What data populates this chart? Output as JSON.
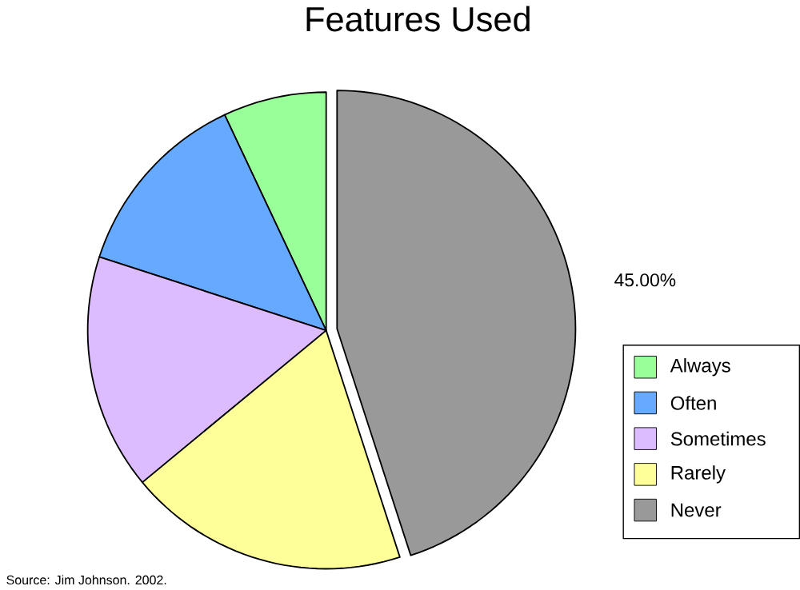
{
  "chart_data": {
    "type": "pie",
    "title": "Features Used",
    "categories": [
      "Always",
      "Often",
      "Sometimes",
      "Rarely",
      "Never"
    ],
    "values": [
      7,
      13,
      16,
      19,
      45
    ],
    "colors": [
      "#99ff99",
      "#66aaff",
      "#ddbbff",
      "#ffff99",
      "#999999"
    ],
    "value_labels": [
      null,
      null,
      null,
      null,
      "45.00%"
    ],
    "legend": "right",
    "annotations": [
      "Source:  Jim Johnson. 2002."
    ]
  }
}
